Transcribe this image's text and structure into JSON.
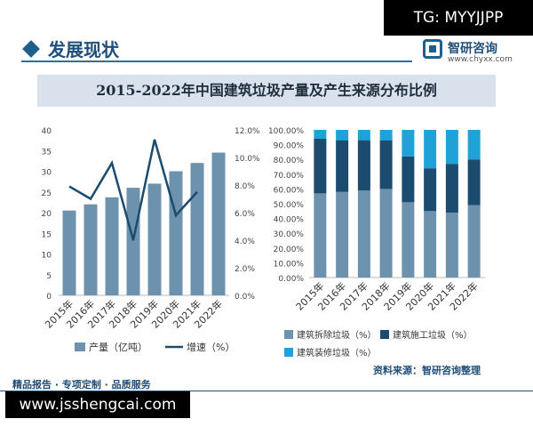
{
  "tag": "TG: MYYJJPP",
  "header": {
    "title": "发展现状"
  },
  "brand": {
    "name": "智研咨询",
    "url": "www.chyxx.com"
  },
  "chart_title": "2015-2022年中国建筑垃圾产量及产生来源分布比例",
  "chart_data": [
    {
      "type": "bar",
      "categories": [
        "2015年",
        "2016年",
        "2017年",
        "2018年",
        "2019年",
        "2020年",
        "2021年",
        "2022年"
      ],
      "series": [
        {
          "name": "产量（亿吨）",
          "axis": "left",
          "values": [
            20.5,
            22.0,
            23.7,
            26.0,
            27.0,
            30.0,
            32.0,
            34.5
          ]
        },
        {
          "name": "增速（%）",
          "type": "line",
          "axis": "right",
          "values": [
            7.9,
            7.0,
            9.6,
            4.0,
            11.3,
            5.8,
            7.5,
            null
          ]
        }
      ],
      "yleft": {
        "ticks": [
          "0",
          "5",
          "10",
          "15",
          "20",
          "25",
          "30",
          "35",
          "40"
        ],
        "lim": [
          0,
          40
        ]
      },
      "yright": {
        "ticks": [
          "0.0%",
          "2.0%",
          "4.0%",
          "6.0%",
          "8.0%",
          "10.0%",
          "12.0%"
        ],
        "lim": [
          0,
          12
        ]
      },
      "colors": {
        "bar": "#6d92ad",
        "line": "#1b4b6e"
      }
    },
    {
      "type": "bar",
      "stacked": true,
      "categories": [
        "2015年",
        "2016年",
        "2017年",
        "2018年",
        "2019年",
        "2020年",
        "2021年",
        "2022年"
      ],
      "series": [
        {
          "name": "建筑拆除垃圾（%）",
          "values": [
            57,
            58,
            59,
            60,
            51,
            45,
            44,
            49
          ],
          "color": "#6d92ad"
        },
        {
          "name": "建筑施工垃圾（%）",
          "values": [
            37,
            35,
            34,
            33,
            31,
            29,
            33,
            31
          ],
          "color": "#1b4b6e"
        },
        {
          "name": "建筑装修垃圾（%）",
          "values": [
            6,
            7,
            7,
            7,
            18,
            26,
            23,
            20
          ],
          "color": "#1fa2d8"
        }
      ],
      "y": {
        "ticks": [
          "0.00%",
          "10.00%",
          "20.00%",
          "30.00%",
          "40.00%",
          "50.00%",
          "60.00%",
          "70.00%",
          "80.00%",
          "90.00%",
          "100.00%"
        ],
        "lim": [
          0,
          100
        ]
      }
    }
  ],
  "footer": {
    "left": "精品报告 · 专项定制 · 品质服务",
    "source": "资料来源：智研咨询整理",
    "url": "www.jsshengcai.com"
  }
}
